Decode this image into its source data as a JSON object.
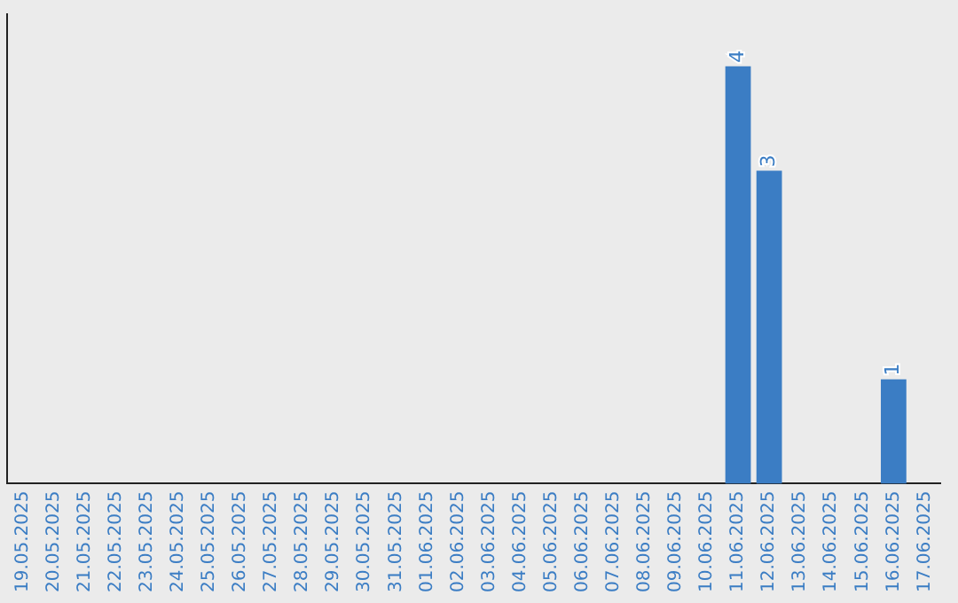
{
  "chart_data": {
    "type": "bar",
    "categories": [
      "19.05.2025",
      "20.05.2025",
      "21.05.2025",
      "22.05.2025",
      "23.05.2025",
      "24.05.2025",
      "25.05.2025",
      "26.05.2025",
      "27.05.2025",
      "28.05.2025",
      "29.05.2025",
      "30.05.2025",
      "31.05.2025",
      "01.06.2025",
      "02.06.2025",
      "03.06.2025",
      "04.06.2025",
      "05.06.2025",
      "06.06.2025",
      "07.06.2025",
      "08.06.2025",
      "09.06.2025",
      "10.06.2025",
      "11.06.2025",
      "12.06.2025",
      "13.06.2025",
      "14.06.2025",
      "15.06.2025",
      "16.06.2025",
      "17.06.2025"
    ],
    "values": [
      null,
      null,
      null,
      null,
      null,
      null,
      null,
      null,
      null,
      null,
      null,
      null,
      null,
      null,
      null,
      null,
      null,
      null,
      null,
      null,
      null,
      null,
      null,
      4,
      3,
      null,
      null,
      null,
      1,
      null
    ],
    "value_labels": [
      null,
      null,
      null,
      null,
      null,
      null,
      null,
      null,
      null,
      null,
      null,
      null,
      null,
      null,
      null,
      null,
      null,
      null,
      null,
      null,
      null,
      null,
      null,
      "4",
      "3",
      null,
      null,
      null,
      "1",
      null
    ],
    "color": "#3b7dc4",
    "tick_labels": "x",
    "grid": false
  }
}
